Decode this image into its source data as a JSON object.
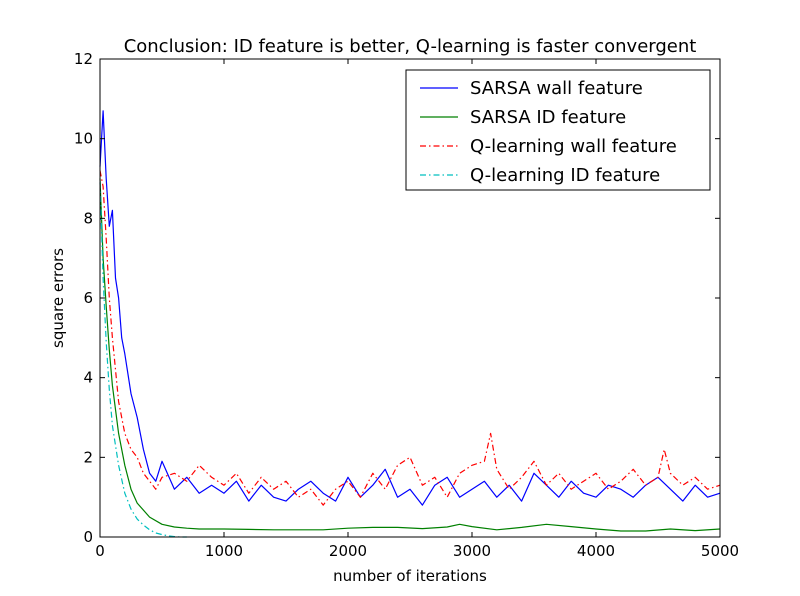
{
  "chart_data": {
    "type": "line",
    "title": "Conclusion: ID feature is better, Q-learning is faster convergent",
    "xlabel": "number of iterations",
    "ylabel": "square errors",
    "xlim": [
      0,
      5000
    ],
    "ylim": [
      0,
      12
    ],
    "xticks": [
      0,
      1000,
      2000,
      3000,
      4000,
      5000
    ],
    "yticks": [
      0,
      2,
      4,
      6,
      8,
      10,
      12
    ],
    "grid": false,
    "legend_position": "top-right",
    "series": [
      {
        "name": "SARSA wall feature",
        "color": "#0000ff",
        "style": "solid",
        "x": [
          0,
          25,
          50,
          75,
          100,
          125,
          150,
          175,
          200,
          250,
          300,
          350,
          400,
          450,
          500,
          600,
          700,
          800,
          900,
          1000,
          1100,
          1200,
          1300,
          1400,
          1500,
          1600,
          1700,
          1800,
          1900,
          2000,
          2100,
          2200,
          2300,
          2400,
          2500,
          2600,
          2700,
          2800,
          2900,
          3000,
          3100,
          3200,
          3300,
          3400,
          3500,
          3600,
          3700,
          3800,
          3900,
          4000,
          4100,
          4200,
          4300,
          4400,
          4500,
          4600,
          4700,
          4800,
          4900,
          5000
        ],
        "y": [
          9.3,
          10.7,
          9.0,
          7.8,
          8.2,
          6.5,
          6.0,
          5.0,
          4.6,
          3.6,
          3.0,
          2.2,
          1.6,
          1.4,
          1.9,
          1.2,
          1.5,
          1.1,
          1.3,
          1.1,
          1.4,
          0.9,
          1.3,
          1.0,
          0.9,
          1.2,
          1.4,
          1.1,
          0.9,
          1.5,
          1.0,
          1.3,
          1.7,
          1.0,
          1.2,
          0.8,
          1.3,
          1.5,
          1.0,
          1.2,
          1.4,
          1.0,
          1.3,
          0.9,
          1.6,
          1.3,
          1.0,
          1.4,
          1.1,
          1.0,
          1.3,
          1.2,
          1.0,
          1.3,
          1.5,
          1.2,
          0.9,
          1.3,
          1.0,
          1.1
        ]
      },
      {
        "name": "SARSA ID feature",
        "color": "#008000",
        "style": "solid",
        "x": [
          0,
          25,
          50,
          75,
          100,
          150,
          200,
          250,
          300,
          400,
          500,
          600,
          700,
          800,
          1000,
          1200,
          1400,
          1600,
          1800,
          2000,
          2200,
          2400,
          2600,
          2800,
          2900,
          3000,
          3200,
          3400,
          3600,
          3800,
          4000,
          4200,
          4400,
          4600,
          4800,
          5000
        ],
        "y": [
          9.0,
          7.0,
          5.8,
          4.7,
          3.8,
          2.6,
          1.8,
          1.2,
          0.85,
          0.5,
          0.32,
          0.25,
          0.22,
          0.2,
          0.2,
          0.19,
          0.18,
          0.18,
          0.18,
          0.22,
          0.24,
          0.24,
          0.21,
          0.25,
          0.32,
          0.26,
          0.18,
          0.24,
          0.32,
          0.26,
          0.2,
          0.15,
          0.15,
          0.2,
          0.16,
          0.2
        ]
      },
      {
        "name": "Q-learning wall feature",
        "color": "#ff0000",
        "style": "dashdot",
        "x": [
          0,
          25,
          50,
          75,
          100,
          125,
          150,
          175,
          200,
          250,
          300,
          350,
          400,
          450,
          500,
          600,
          700,
          800,
          900,
          1000,
          1100,
          1200,
          1300,
          1400,
          1500,
          1600,
          1700,
          1800,
          1900,
          2000,
          2100,
          2200,
          2300,
          2400,
          2500,
          2600,
          2700,
          2800,
          2900,
          3000,
          3100,
          3150,
          3200,
          3300,
          3400,
          3500,
          3600,
          3700,
          3800,
          3900,
          4000,
          4100,
          4200,
          4300,
          4400,
          4500,
          4550,
          4600,
          4700,
          4800,
          4900,
          5000
        ],
        "y": [
          9.2,
          8.8,
          7.5,
          6.0,
          5.0,
          4.2,
          3.4,
          3.0,
          2.6,
          2.2,
          2.0,
          1.6,
          1.4,
          1.2,
          1.5,
          1.6,
          1.4,
          1.8,
          1.5,
          1.3,
          1.6,
          1.1,
          1.5,
          1.2,
          1.4,
          1.0,
          1.2,
          0.8,
          1.2,
          1.4,
          1.0,
          1.6,
          1.2,
          1.8,
          2.0,
          1.3,
          1.5,
          1.0,
          1.6,
          1.8,
          1.9,
          2.6,
          1.7,
          1.2,
          1.5,
          1.9,
          1.3,
          1.6,
          1.2,
          1.4,
          1.6,
          1.2,
          1.4,
          1.7,
          1.3,
          1.5,
          2.2,
          1.6,
          1.3,
          1.5,
          1.2,
          1.3
        ]
      },
      {
        "name": "Q-learning ID feature",
        "color": "#00bfbf",
        "style": "dashdot",
        "x": [
          0,
          25,
          50,
          75,
          100,
          150,
          200,
          250,
          300,
          350,
          400,
          450,
          500,
          550,
          600,
          650,
          700
        ],
        "y": [
          8.9,
          6.5,
          4.9,
          3.7,
          2.8,
          1.8,
          1.1,
          0.7,
          0.45,
          0.3,
          0.18,
          0.1,
          0.06,
          0.03,
          0.01,
          0.0,
          0.0
        ]
      }
    ]
  }
}
